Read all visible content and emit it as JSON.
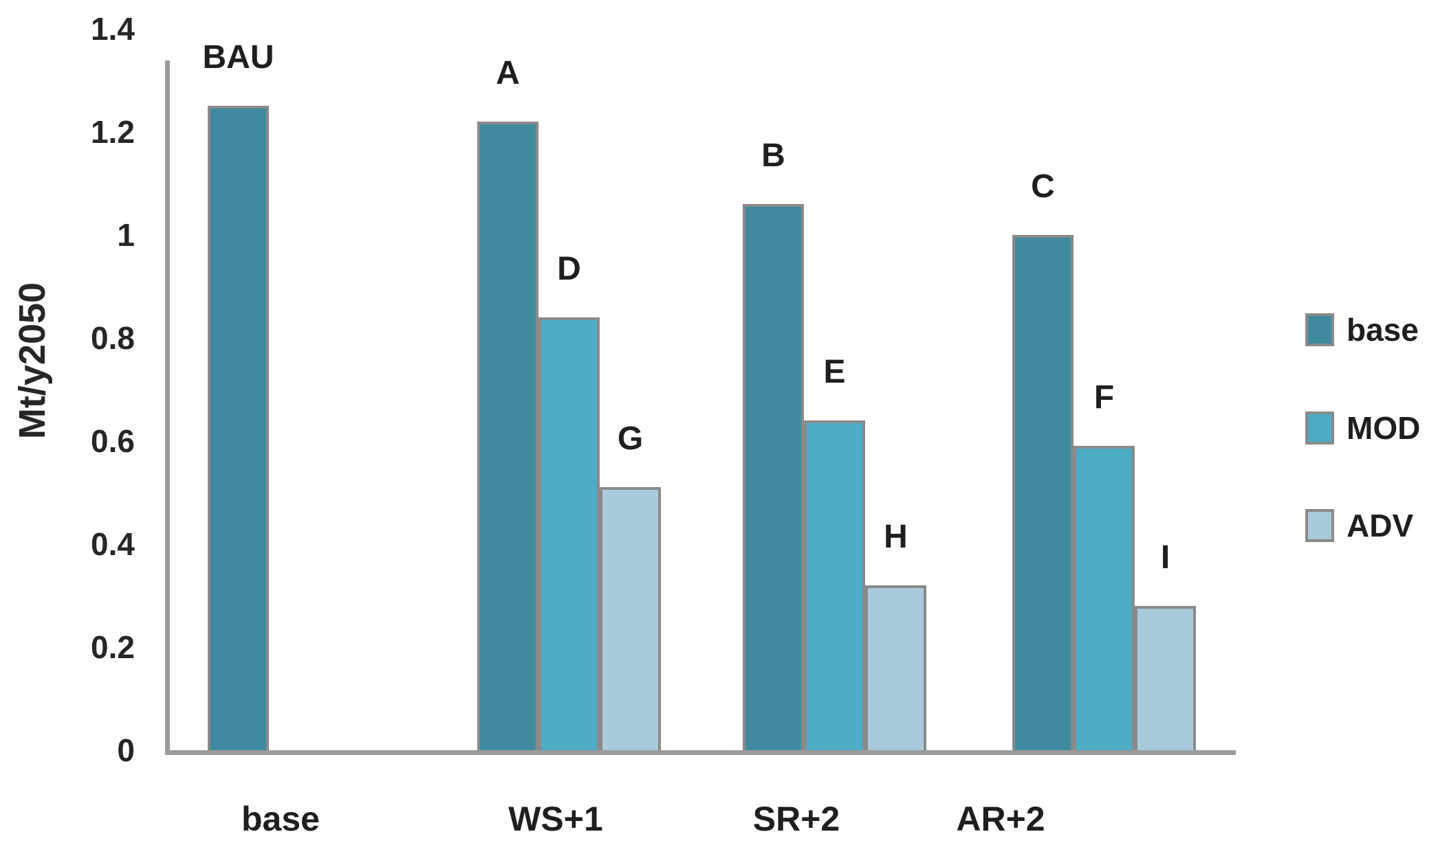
{
  "chart_data": {
    "type": "bar",
    "title": "",
    "ylabel": "Mt/y2050",
    "xlabel": "",
    "categories": [
      "base",
      "WS+1",
      "SR+2",
      "AR+2"
    ],
    "series": [
      {
        "name": "base",
        "color": "#408AA0",
        "values": [
          1.25,
          1.22,
          1.06,
          1.0
        ],
        "bar_labels": [
          "BAU",
          "A",
          "B",
          "C"
        ]
      },
      {
        "name": "MOD",
        "color": "#4DACC6",
        "values": [
          null,
          0.84,
          0.64,
          0.59
        ],
        "bar_labels": [
          null,
          "D",
          "E",
          "F"
        ]
      },
      {
        "name": "ADV",
        "color": "#A9CADB",
        "values": [
          null,
          0.51,
          0.32,
          0.28
        ],
        "bar_labels": [
          null,
          "G",
          "H",
          "I"
        ]
      }
    ],
    "ylim": [
      0,
      1.4
    ],
    "yticks": [
      0,
      0.2,
      0.4,
      0.6,
      0.8,
      1,
      1.2,
      1.4
    ],
    "ytick_labels": [
      "0",
      "0.2",
      "0.4",
      "0.6",
      "0.8",
      "1",
      "1.2",
      "1.4"
    ],
    "legend": {
      "position": "right",
      "entries": [
        "base",
        "MOD",
        "ADV"
      ]
    },
    "grid": false,
    "colors": {
      "axis": "#9B9B9B",
      "bar_border": "#8A8A8A",
      "text": "#1F1F1F"
    }
  }
}
